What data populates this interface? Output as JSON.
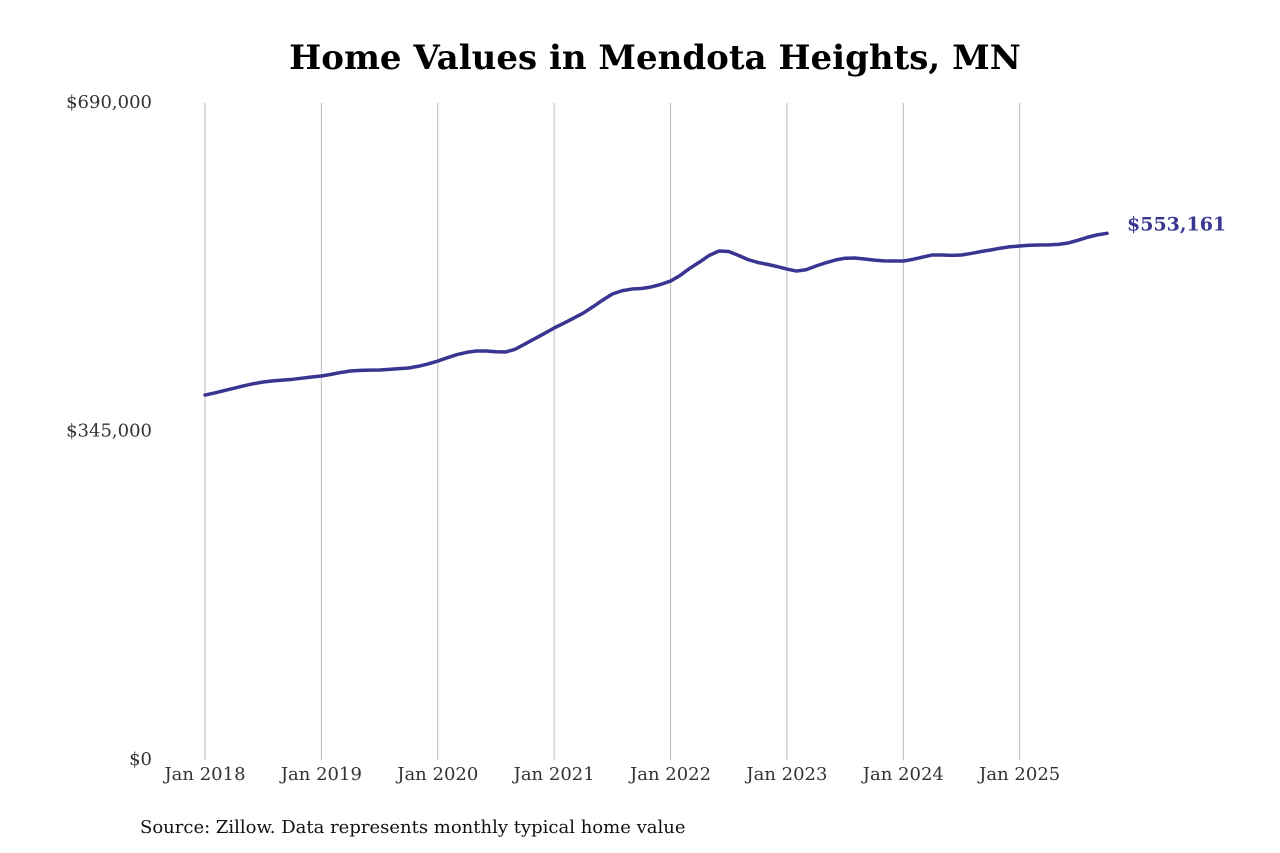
{
  "chart_data": {
    "type": "line",
    "title": "Home Values in Mendota Heights, MN",
    "source": "Source: Zillow. Data represents monthly typical home value",
    "x": [
      "2018-01",
      "2018-02",
      "2018-03",
      "2018-04",
      "2018-05",
      "2018-06",
      "2018-07",
      "2018-08",
      "2018-09",
      "2018-10",
      "2018-11",
      "2018-12",
      "2019-01",
      "2019-02",
      "2019-03",
      "2019-04",
      "2019-05",
      "2019-06",
      "2019-07",
      "2019-08",
      "2019-09",
      "2019-10",
      "2019-11",
      "2019-12",
      "2020-01",
      "2020-02",
      "2020-03",
      "2020-04",
      "2020-05",
      "2020-06",
      "2020-07",
      "2020-08",
      "2020-09",
      "2020-10",
      "2020-11",
      "2020-12",
      "2021-01",
      "2021-02",
      "2021-03",
      "2021-04",
      "2021-05",
      "2021-06",
      "2021-07",
      "2021-08",
      "2021-09",
      "2021-10",
      "2021-11",
      "2021-12",
      "2022-01",
      "2022-02",
      "2022-03",
      "2022-04",
      "2022-05",
      "2022-06",
      "2022-07",
      "2022-08",
      "2022-09",
      "2022-10",
      "2022-11",
      "2022-12",
      "2023-01",
      "2023-02",
      "2023-03",
      "2023-04",
      "2023-05",
      "2023-06",
      "2023-07",
      "2023-08",
      "2023-09",
      "2023-10",
      "2023-11",
      "2023-12",
      "2024-01",
      "2024-02",
      "2024-03",
      "2024-04",
      "2024-05",
      "2024-06",
      "2024-07",
      "2024-08",
      "2024-09",
      "2024-10",
      "2024-11",
      "2024-12",
      "2025-01",
      "2025-02",
      "2025-03",
      "2025-04",
      "2025-05",
      "2025-06",
      "2025-07",
      "2025-08",
      "2025-09",
      "2025-10"
    ],
    "series": [
      {
        "color": "#3a3591",
        "values": [
          383300,
          385500,
          388000,
          390500,
          393000,
          395200,
          397000,
          398200,
          399000,
          399800,
          401000,
          402200,
          403300,
          405000,
          407000,
          408500,
          409200,
          409500,
          409600,
          410200,
          411000,
          411700,
          413500,
          416000,
          419000,
          422500,
          425800,
          428200,
          429500,
          429600,
          428800,
          428500,
          431500,
          437000,
          442500,
          448000,
          453700,
          458800,
          464000,
          469400,
          476000,
          483000,
          489400,
          492800,
          494600,
          495200,
          496800,
          499500,
          503000,
          509000,
          516500,
          523000,
          530000,
          534600,
          534000,
          530000,
          525500,
          522500,
          520500,
          518200,
          515600,
          513500,
          515000,
          518800,
          522200,
          525100,
          527000,
          527200,
          526200,
          525000,
          524200,
          524000,
          524000,
          525800,
          528200,
          530400,
          530400,
          530000,
          530400,
          532000,
          534000,
          535600,
          537500,
          539000,
          539800,
          540600,
          540900,
          541000,
          541500,
          543000,
          545800,
          549000,
          551500,
          553161
        ],
        "value_labels": [
          null,
          null,
          null,
          null,
          null,
          null,
          null,
          null,
          null,
          null,
          null,
          null,
          null,
          null,
          null,
          null,
          null,
          null,
          null,
          null,
          null,
          null,
          null,
          null,
          null,
          null,
          null,
          null,
          null,
          null,
          null,
          null,
          null,
          null,
          null,
          null,
          null,
          null,
          null,
          null,
          null,
          null,
          null,
          null,
          null,
          null,
          null,
          null,
          null,
          null,
          null,
          null,
          null,
          null,
          null,
          null,
          null,
          null,
          null,
          null,
          null,
          null,
          null,
          null,
          null,
          null,
          null,
          null,
          null,
          null,
          null,
          null,
          null,
          null,
          null,
          null,
          null,
          null,
          null,
          null,
          null,
          null,
          null,
          null,
          null,
          null,
          null,
          null,
          null,
          null,
          null,
          null,
          null,
          "$553,161"
        ]
      }
    ],
    "xlim": [
      "2018-01",
      "2025-10"
    ],
    "xticks": [
      {
        "value": "2018-01",
        "label": "Jan 2018"
      },
      {
        "value": "2019-01",
        "label": "Jan 2019"
      },
      {
        "value": "2020-01",
        "label": "Jan 2020"
      },
      {
        "value": "2021-01",
        "label": "Jan 2021"
      },
      {
        "value": "2022-01",
        "label": "Jan 2022"
      },
      {
        "value": "2023-01",
        "label": "Jan 2023"
      },
      {
        "value": "2024-01",
        "label": "Jan 2024"
      },
      {
        "value": "2025-01",
        "label": "Jan 2025"
      }
    ],
    "ylim": [
      0,
      690000
    ],
    "yticks": [
      {
        "value": 0,
        "label": "$0"
      },
      {
        "value": 345000,
        "label": "$345,000"
      },
      {
        "value": 690000,
        "label": "$690,000"
      }
    ],
    "grid": "x"
  }
}
